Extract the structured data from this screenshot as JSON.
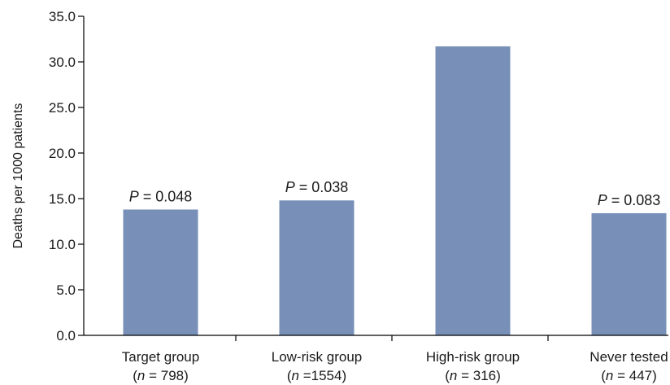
{
  "chart_data": {
    "type": "bar",
    "title": "",
    "xlabel": "",
    "ylabel": "Deaths per 1000 patients",
    "ylim": [
      0,
      35
    ],
    "y_ticks": [
      "0.0",
      "5.0",
      "10.0",
      "15.0",
      "20.0",
      "25.0",
      "30.0",
      "35.0"
    ],
    "grid": false,
    "legend": "none",
    "bar_color": "#7890b8",
    "categories": [
      {
        "name": "Target group",
        "n_prefix": "(",
        "n_var": "n",
        "n_suffix": " = 798)",
        "value": 13.8,
        "p_var": "P",
        "p_text": " = 0.048"
      },
      {
        "name": "Low-risk group",
        "n_prefix": "(",
        "n_var": "n",
        "n_suffix": " =1554)",
        "value": 14.8,
        "p_var": "P",
        "p_text": " = 0.038"
      },
      {
        "name": "High-risk group",
        "n_prefix": "(",
        "n_var": "n",
        "n_suffix": " = 316)",
        "value": 31.7,
        "p_var": "",
        "p_text": ""
      },
      {
        "name": "Never tested",
        "n_prefix": "(",
        "n_var": "n",
        "n_suffix": " = 447)",
        "value": 13.4,
        "p_var": "P",
        "p_text": " = 0.083"
      }
    ]
  }
}
